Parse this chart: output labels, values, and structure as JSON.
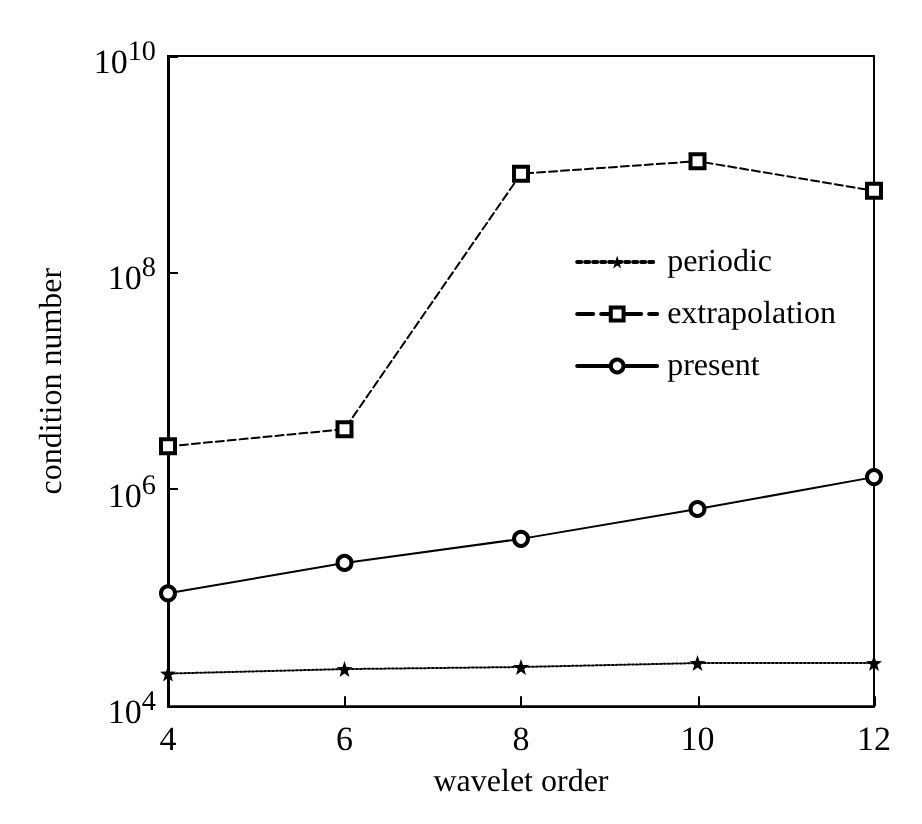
{
  "chart_data": {
    "type": "line",
    "xlabel": "wavelet order",
    "ylabel": "condition number",
    "x": [
      4,
      6,
      8,
      10,
      12
    ],
    "xlim": [
      4,
      12
    ],
    "xticks": [
      4,
      6,
      8,
      10,
      12
    ],
    "log": "y",
    "ylim": [
      10000,
      10000000000
    ],
    "yticks": [
      {
        "value": 10000,
        "label": "10$^{4}$"
      },
      {
        "value": 1000000,
        "label": "10$^{6}$"
      },
      {
        "value": 100000000,
        "label": "10$^{8}$"
      },
      {
        "value": 10000000000,
        "label": "10$^{10}$"
      }
    ],
    "legend": "top right",
    "grid": false,
    "series": [
      {
        "name": "periodic",
        "color": "#000000",
        "marker": "star",
        "line_style": "dotted",
        "values": [
          20000,
          22000,
          23000,
          25000,
          25000
        ]
      },
      {
        "name": "extrapolation",
        "color": "#000000",
        "marker": "square",
        "line_style": "dashed",
        "values": [
          2500000,
          3600000,
          820000000,
          1070000000,
          570000000
        ]
      },
      {
        "name": "present",
        "color": "#000000",
        "marker": "circle",
        "line_style": "solid",
        "values": [
          110000,
          210000,
          350000,
          660000,
          1300000
        ]
      }
    ]
  }
}
